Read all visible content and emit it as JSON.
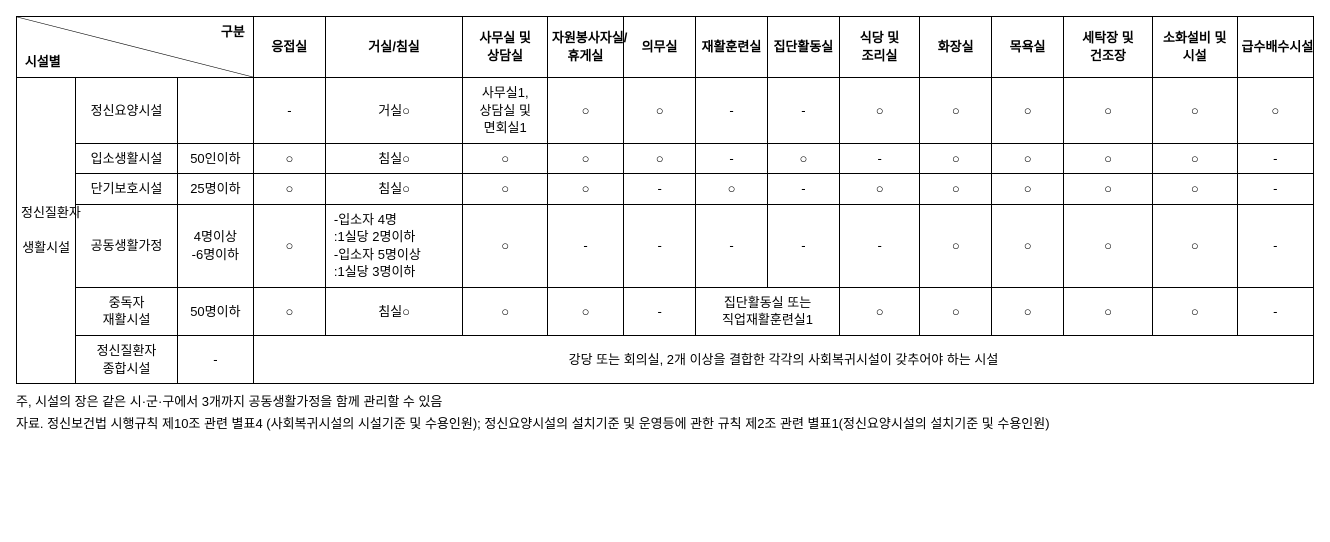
{
  "header": {
    "diag_top_right": "구분",
    "diag_bottom_left": "시설별",
    "cols": [
      "응접실",
      "거실/침실",
      "사무실 및 상담실",
      "자원봉사자실/휴게실",
      "의무실",
      "재활훈련실",
      "집단활동실",
      "식당 및 조리실",
      "화장실",
      "목욕실",
      "세탁장 및 건조장",
      "소화설비 및 시설",
      "급수배수시설"
    ]
  },
  "group_label": "정신질환자\n\n생활시설",
  "rows": {
    "r1": {
      "name": "정신요양시설",
      "cap": "",
      "c": [
        "-",
        "거실○",
        "사무실1, 상담실 및 면회실1",
        "○",
        "○",
        "-",
        "-",
        "○",
        "○",
        "○",
        "○",
        "○",
        "○"
      ]
    },
    "r2": {
      "name": "입소생활시설",
      "cap": "50인이하",
      "c": [
        "○",
        "침실○",
        "○",
        "○",
        "○",
        "-",
        "○",
        "-",
        "○",
        "○",
        "○",
        "○",
        "-"
      ]
    },
    "r3": {
      "name": "단기보호시설",
      "cap": "25명이하",
      "c": [
        "○",
        "침실○",
        "○",
        "○",
        "-",
        "○",
        "-",
        "○",
        "○",
        "○",
        "○",
        "○",
        "-"
      ]
    },
    "r4": {
      "name": "공동생활가정",
      "cap": "4명이상\n-6명이하",
      "c": [
        "○",
        "-입소자 4명\n:1실당 2명이하\n-입소자 5명이상\n:1실당 3명이하",
        "○",
        "-",
        "-",
        "-",
        "-",
        "-",
        "○",
        "○",
        "○",
        "○",
        "-"
      ]
    },
    "r5": {
      "name": "중독자\n재활시설",
      "cap": "50명이하",
      "c0": "○",
      "c1": "침실○",
      "c2": "○",
      "c3": "○",
      "c4": "-",
      "merged_5_6": "집단활동실 또는\n직업재활훈련실1",
      "c7": "○",
      "c8": "○",
      "c9": "○",
      "c10": "○",
      "c11": "○",
      "c12": "-"
    },
    "r6": {
      "name": "정신질환자\n종합시설",
      "cap": "-",
      "merged_all": "강당 또는 회의실, 2개 이상을 결합한 각각의 사회복귀시설이 갖추어야 하는 시설"
    }
  },
  "footnotes": {
    "p1": "주, 시설의 장은 같은 시·군·구에서 3개까지 공동생활가정을 함께 관리할 수 있음",
    "p2": "자료. 정신보건법 시행규칙 제10조 관련 별표4 (사회복귀시설의 시설기준 및 수용인원); 정신요양시설의 설치기준 및 운영등에 관한 규칙 제2조 관련 별표1(정신요양시설의 설치기준 및 수용인원)"
  }
}
